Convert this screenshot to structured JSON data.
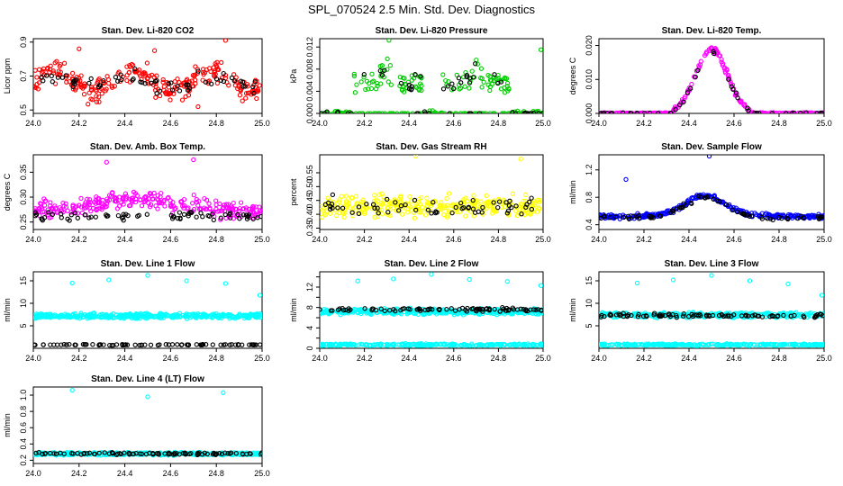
{
  "figure_title": "SPL_070524  2.5 Min. Std. Dev. Diagnostics",
  "x_tick_labels": [
    "24.0",
    "24.2",
    "24.4",
    "24.6",
    "24.8",
    "25.0"
  ],
  "chart_data": [
    {
      "type": "scatter",
      "title": "Stan. Dev. Li-820 CO2",
      "xlabel": "",
      "ylabel": "Licor ppm",
      "xlim": [
        24.0,
        25.0
      ],
      "ylim": [
        0.48,
        0.92
      ],
      "yticks": [
        0.5,
        0.7,
        0.9
      ],
      "series": [
        {
          "color": "#ff0000",
          "pattern": {
            "kind": "noise",
            "base": 0.67,
            "amp": 0.06,
            "spread": 0.1,
            "n": 260
          },
          "outliers": [
            [
              24.2,
              0.86
            ],
            [
              24.84,
              0.91
            ],
            [
              24.72,
              0.52
            ],
            [
              24.53,
              0.85
            ]
          ]
        },
        {
          "color": "#000000",
          "pattern": {
            "kind": "noise",
            "base": 0.67,
            "amp": 0.04,
            "spread": 0.07,
            "n": 60
          }
        }
      ]
    },
    {
      "type": "scatter",
      "title": "Stan. Dev. Li-820 Pressure",
      "xlabel": "",
      "ylabel": "kPa",
      "xlim": [
        24.0,
        25.0
      ],
      "ylim": [
        0.0,
        0.0135
      ],
      "yticks": [
        0.0,
        0.004,
        0.008,
        0.012
      ],
      "tick_labels": [
        "0.000",
        "0.004",
        "0.008",
        "0.012"
      ],
      "series": [
        {
          "color": "#00cc00",
          "pattern": {
            "kind": "pressure",
            "n": 280
          },
          "outliers": [
            [
              24.31,
              0.0132
            ],
            [
              24.99,
              0.0115
            ]
          ]
        },
        {
          "color": "#000000",
          "pattern": {
            "kind": "pressure",
            "n": 55
          }
        }
      ]
    },
    {
      "type": "scatter",
      "title": "Stan. Dev. Li-820 Temp.",
      "xlabel": "",
      "ylabel": "degrees C",
      "xlim": [
        24.0,
        25.0
      ],
      "ylim": [
        0.0,
        0.022
      ],
      "yticks": [
        0.0,
        0.01,
        0.02
      ],
      "tick_labels": [
        "0.000",
        "0.010",
        "0.020"
      ],
      "series": [
        {
          "color": "#ff00ff",
          "pattern": {
            "kind": "peak",
            "base": 0.0,
            "peak": 0.019,
            "center": 24.5,
            "width": 0.1,
            "cut": 0.17,
            "spread": 0.0012,
            "n": 240
          }
        },
        {
          "color": "#000000",
          "pattern": {
            "kind": "peak",
            "base": 0.0,
            "peak": 0.018,
            "center": 24.5,
            "width": 0.1,
            "cut": 0.17,
            "spread": 0.0008,
            "n": 45
          }
        }
      ]
    },
    {
      "type": "scatter",
      "title": "Stan. Dev. Amb. Box Temp.",
      "xlabel": "",
      "ylabel": "degrees C",
      "xlim": [
        24.0,
        25.0
      ],
      "ylim": [
        0.235,
        0.385
      ],
      "yticks": [
        0.25,
        0.3,
        0.35
      ],
      "tick_labels": [
        "0.25",
        "0.30",
        "0.35"
      ],
      "series": [
        {
          "color": "#ff00ff",
          "pattern": {
            "kind": "hump",
            "base": 0.27,
            "amp": 0.025,
            "spread": 0.025,
            "n": 280
          },
          "outliers": [
            [
              24.7,
              0.375
            ],
            [
              24.32,
              0.37
            ]
          ]
        },
        {
          "color": "#000000",
          "pattern": {
            "kind": "noise",
            "base": 0.262,
            "amp": 0.0,
            "spread": 0.012,
            "n": 70
          }
        }
      ]
    },
    {
      "type": "scatter",
      "title": "Stan. Dev. Gas Stream RH",
      "xlabel": "",
      "ylabel": "percent",
      "xlim": [
        24.0,
        25.0
      ],
      "ylim": [
        0.345,
        0.615
      ],
      "yticks": [
        0.35,
        0.4,
        0.45,
        0.5,
        0.55
      ],
      "tick_labels": [
        "0.35",
        "0.40",
        "0.45",
        "0.50",
        "0.55"
      ],
      "series": [
        {
          "color": "#ffff00",
          "pattern": {
            "kind": "noise",
            "base": 0.43,
            "amp": 0.0,
            "spread": 0.055,
            "n": 300
          },
          "outliers": [
            [
              24.43,
              0.61
            ],
            [
              24.9,
              0.6
            ]
          ]
        },
        {
          "color": "#000000",
          "pattern": {
            "kind": "noise",
            "base": 0.43,
            "amp": 0.0,
            "spread": 0.045,
            "n": 60
          }
        }
      ]
    },
    {
      "type": "scatter",
      "title": "Stan. Dev. Sample Flow",
      "xlabel": "",
      "ylabel": "ml/min",
      "xlim": [
        24.0,
        25.0
      ],
      "ylim": [
        0.33,
        1.42
      ],
      "yticks": [
        0.4,
        0.8,
        1.2
      ],
      "series": [
        {
          "color": "#0000ff",
          "pattern": {
            "kind": "peak",
            "base": 0.52,
            "peak": 0.3,
            "center": 24.47,
            "width": 0.13,
            "cut": 0.6,
            "spread": 0.05,
            "n": 300
          },
          "outliers": [
            [
              24.12,
              1.06
            ],
            [
              24.49,
              1.4
            ]
          ]
        },
        {
          "color": "#000000",
          "pattern": {
            "kind": "peak",
            "base": 0.5,
            "peak": 0.3,
            "center": 24.47,
            "width": 0.13,
            "cut": 0.6,
            "spread": 0.04,
            "n": 70
          }
        }
      ]
    },
    {
      "type": "scatter",
      "title": "Stan. Dev. Line 1 Flow",
      "xlabel": "",
      "ylabel": "ml/min",
      "xlim": [
        24.0,
        25.0
      ],
      "ylim": [
        0.0,
        17.0
      ],
      "yticks": [
        5,
        10,
        15
      ],
      "series": [
        {
          "color": "#00ffff",
          "pattern": {
            "kind": "band",
            "base": 7.2,
            "spread": 0.8,
            "n": 420
          },
          "outliers": [
            [
              24.17,
              14.5
            ],
            [
              24.33,
              15.2
            ],
            [
              24.5,
              16.2
            ],
            [
              24.67,
              15.0
            ],
            [
              24.84,
              14.4
            ],
            [
              24.99,
              11.8
            ]
          ]
        },
        {
          "color": "#000000",
          "pattern": {
            "kind": "band",
            "base": 0.8,
            "spread": 0.15,
            "n": 80
          }
        }
      ]
    },
    {
      "type": "scatter",
      "title": "Stan. Dev. Line 2 Flow",
      "xlabel": "",
      "ylabel": "ml/min",
      "xlim": [
        24.0,
        25.0
      ],
      "ylim": [
        0.0,
        15.0
      ],
      "yticks": [
        0,
        2,
        4,
        6,
        8,
        10,
        12,
        14
      ],
      "tick_labels": [
        "0",
        "",
        "4",
        "",
        "8",
        "",
        "12",
        ""
      ],
      "series": [
        {
          "color": "#00ffff",
          "pattern": {
            "kind": "band",
            "base": 7.2,
            "spread": 0.8,
            "n": 380
          },
          "outliers": [
            [
              24.17,
              13.2
            ],
            [
              24.33,
              13.6
            ],
            [
              24.5,
              14.5
            ],
            [
              24.67,
              13.5
            ],
            [
              24.84,
              13.1
            ],
            [
              24.99,
              12.3
            ]
          ]
        },
        {
          "color": "#00ffff",
          "pattern": {
            "kind": "band",
            "base": 0.7,
            "spread": 0.3,
            "n": 260
          }
        },
        {
          "color": "#000000",
          "pattern": {
            "kind": "band",
            "base": 7.6,
            "spread": 0.5,
            "n": 90
          }
        }
      ]
    },
    {
      "type": "scatter",
      "title": "Stan. Dev. Line 3 Flow",
      "xlabel": "",
      "ylabel": "ml/min",
      "xlim": [
        24.0,
        25.0
      ],
      "ylim": [
        0.0,
        17.0
      ],
      "yticks": [
        5,
        10,
        15
      ],
      "series": [
        {
          "color": "#00ffff",
          "pattern": {
            "kind": "band",
            "base": 7.4,
            "spread": 0.8,
            "n": 380
          },
          "outliers": [
            [
              24.17,
              14.5
            ],
            [
              24.33,
              15.2
            ],
            [
              24.5,
              16.2
            ],
            [
              24.67,
              15.0
            ],
            [
              24.84,
              14.3
            ],
            [
              24.99,
              11.8
            ]
          ]
        },
        {
          "color": "#00ffff",
          "pattern": {
            "kind": "band",
            "base": 0.8,
            "spread": 0.3,
            "n": 260
          }
        },
        {
          "color": "#000000",
          "pattern": {
            "kind": "band",
            "base": 7.3,
            "spread": 0.6,
            "n": 90
          }
        }
      ]
    },
    {
      "type": "scatter",
      "title": "Stan. Dev. Line 4 (LT) Flow",
      "xlabel": "",
      "ylabel": "ml/min",
      "xlim": [
        24.0,
        25.0
      ],
      "ylim": [
        0.16,
        1.1
      ],
      "yticks": [
        0.2,
        0.4,
        0.6,
        0.8,
        1.0
      ],
      "tick_labels": [
        "0.2",
        "0.4",
        "0.6",
        "0.8",
        "1.0"
      ],
      "series": [
        {
          "color": "#00ffff",
          "pattern": {
            "kind": "band",
            "base": 0.28,
            "spread": 0.025,
            "n": 420
          },
          "outliers": [
            [
              24.17,
              1.06
            ],
            [
              24.5,
              0.98
            ],
            [
              24.83,
              1.03
            ]
          ]
        },
        {
          "color": "#000000",
          "pattern": {
            "kind": "band",
            "base": 0.28,
            "spread": 0.02,
            "n": 90
          }
        }
      ]
    }
  ]
}
